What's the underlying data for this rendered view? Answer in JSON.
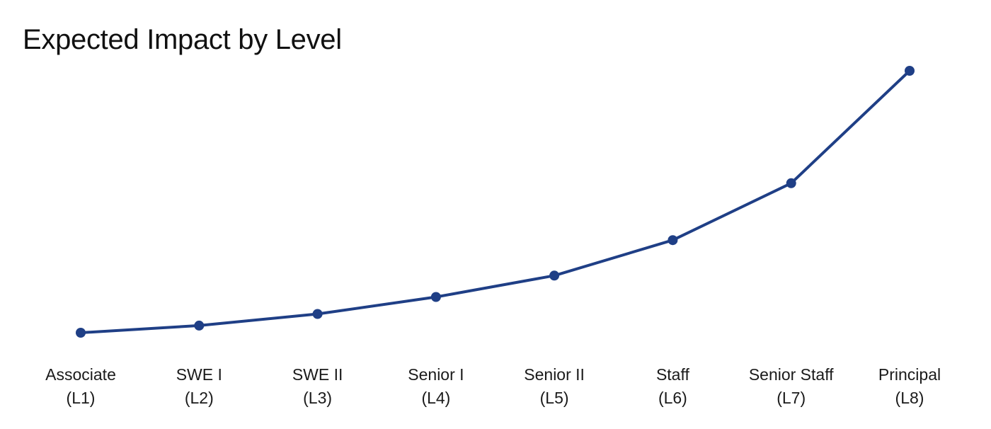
{
  "chart_data": {
    "type": "line",
    "title": "Expected Impact by Level",
    "xlabel": "",
    "ylabel": "",
    "categories": [
      [
        "Associate",
        "(L1)"
      ],
      [
        "SWE I",
        "(L2)"
      ],
      [
        "SWE II",
        "(L3)"
      ],
      [
        "Senior I",
        "(L4)"
      ],
      [
        "Senior II",
        "(L5)"
      ],
      [
        "Staff",
        "(L6)"
      ],
      [
        "Senior Staff",
        "(L7)"
      ],
      [
        "Principal",
        "(L8)"
      ]
    ],
    "series": [
      {
        "values": [
          1.0,
          1.27,
          1.71,
          2.35,
          3.16,
          4.5,
          6.65,
          10.9
        ]
      }
    ],
    "ylim": [
      0,
      11
    ],
    "grid": false,
    "legend": "none",
    "line_color": "#1f3f86"
  }
}
